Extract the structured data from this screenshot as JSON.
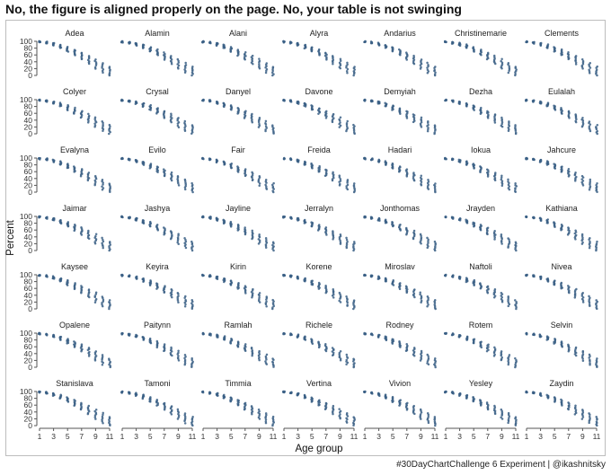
{
  "title": "No, the figure is aligned properly on the page. No, your table is not swinging",
  "caption": "#30DayChartChallenge 6 Experiment | @ikashnitsky",
  "colors": {
    "series": "#3a5f85",
    "axis": "#555555",
    "frame": "#bdbdbd"
  },
  "chart_data": {
    "type": "scatter",
    "layout": "facet grid, 7 columns x 7 rows",
    "xlabel": "Age group",
    "ylabel": "Percent",
    "xlim": [
      1,
      11
    ],
    "ylim": [
      0,
      100
    ],
    "x_ticks": [
      1,
      3,
      5,
      7,
      9,
      11
    ],
    "y_ticks": [
      0,
      20,
      40,
      60,
      80,
      100
    ],
    "x": [
      1,
      2,
      3,
      4,
      5,
      6,
      7,
      8,
      9,
      10,
      11
    ],
    "approx_center_y": [
      100,
      98,
      94,
      88,
      80,
      71,
      61,
      50,
      38,
      25,
      12
    ],
    "approx_spread_low_y": [
      97,
      94,
      88,
      80,
      70,
      59,
      47,
      34,
      20,
      8,
      0
    ],
    "facets": [
      "Adea",
      "Alamin",
      "Alani",
      "Alyra",
      "Andarius",
      "Christinemarie",
      "Clements",
      "Colyer",
      "Crysal",
      "Danyel",
      "Davone",
      "Demyiah",
      "Dezha",
      "Eulalah",
      "Evalyna",
      "Evilo",
      "Fair",
      "Freida",
      "Hadari",
      "Iokua",
      "Jahcure",
      "Jaimar",
      "Jashya",
      "Jayline",
      "Jerralyn",
      "Jonthomas",
      "Jrayden",
      "Kathiana",
      "Kaysee",
      "Keyira",
      "Kirin",
      "Korene",
      "Miroslav",
      "Naftoli",
      "Nivea",
      "Opalene",
      "Paitynn",
      "Ramlah",
      "Richele",
      "Rodney",
      "Rotem",
      "Selvin",
      "Stanislava",
      "Tamoni",
      "Timmia",
      "Vertina",
      "Vivion",
      "Yesley",
      "Zaydin"
    ]
  }
}
